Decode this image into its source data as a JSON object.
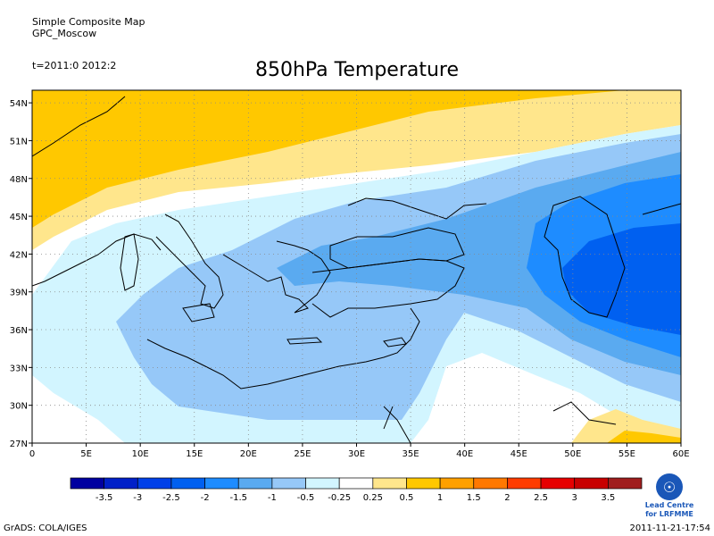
{
  "header": {
    "line1": "Simple Composite Map",
    "line2": "GPC_Moscow",
    "time": "t=2011:0 2012:2"
  },
  "title": "850hPa Temperature",
  "map": {
    "lat_labels": [
      "54N",
      "51N",
      "48N",
      "45N",
      "42N",
      "39N",
      "36N",
      "33N",
      "30N",
      "27N"
    ],
    "lon_labels": [
      "0",
      "5E",
      "10E",
      "15E",
      "20E",
      "25E",
      "30E",
      "35E",
      "40E",
      "45E",
      "50E",
      "55E",
      "60E"
    ],
    "lat_range": [
      27,
      55
    ],
    "lon_range": [
      0,
      60
    ],
    "grid": "dotted"
  },
  "colorbar": {
    "labels": [
      "-3.5",
      "-3",
      "-2.5",
      "-2",
      "-1.5",
      "-1",
      "-0.5",
      "-0.25",
      "0.25",
      "0.5",
      "1",
      "1.5",
      "2",
      "2.5",
      "3",
      "3.5"
    ],
    "colors": [
      "#0000a0",
      "#0020c8",
      "#0040e8",
      "#0060f0",
      "#1e8cff",
      "#5aaaf0",
      "#96c8f8",
      "#d2f5ff",
      "#ffffff",
      "#ffe68c",
      "#ffc800",
      "#ffa000",
      "#ff7800",
      "#ff3c00",
      "#e60000",
      "#c80000",
      "#a01e1e"
    ]
  },
  "logo": {
    "line1": "Lead Centre",
    "line2": "for LRFMME"
  },
  "footer": {
    "left": "GrADS: COLA/IGES",
    "right": "2011-11-21-17:54"
  }
}
